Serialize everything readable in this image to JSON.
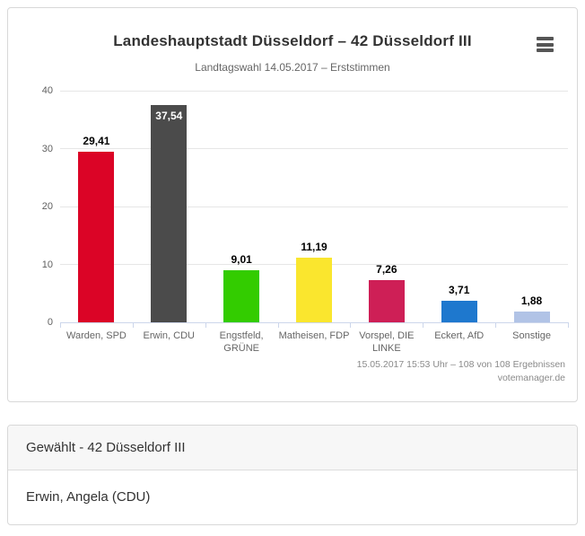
{
  "chart_card": {
    "credits_line1": "15.05.2017 15:53 Uhr – 108 von 108 Ergebnissen",
    "credits_line2": "votemanager.de",
    "menu_icon": "hamburger-icon"
  },
  "chart_data": {
    "type": "bar",
    "title": "Landeshauptstadt Düsseldorf – 42 Düsseldorf III",
    "subtitle": "Landtagswahl 14.05.2017 – Erststimmen",
    "categories": [
      "Warden, SPD",
      "Erwin, CDU",
      "Engstfeld, GRÜNE",
      "Matheisen, FDP",
      "Vorspel, DIE LINKE",
      "Eckert, AfD",
      "Sonstige"
    ],
    "values": [
      29.41,
      37.54,
      9.01,
      11.19,
      7.26,
      3.71,
      1.88
    ],
    "value_labels": [
      "29,41",
      "37,54",
      "9,01",
      "11,19",
      "7,26",
      "3,71",
      "1,88"
    ],
    "colors": [
      "#DB0426",
      "#4B4B4B",
      "#33CC00",
      "#FAE62E",
      "#CE1F56",
      "#1E78CE",
      "#B1C3E6"
    ],
    "ylim": [
      0,
      40
    ],
    "yticks": [
      0,
      10,
      20,
      30,
      40
    ],
    "grid": true,
    "legend": false,
    "grid_color": "#e6e6e6",
    "axis_color": "#ccd6eb"
  },
  "result_panel": {
    "header": "Gewählt - 42 Düsseldorf III",
    "body": "Erwin, Angela (CDU)"
  }
}
